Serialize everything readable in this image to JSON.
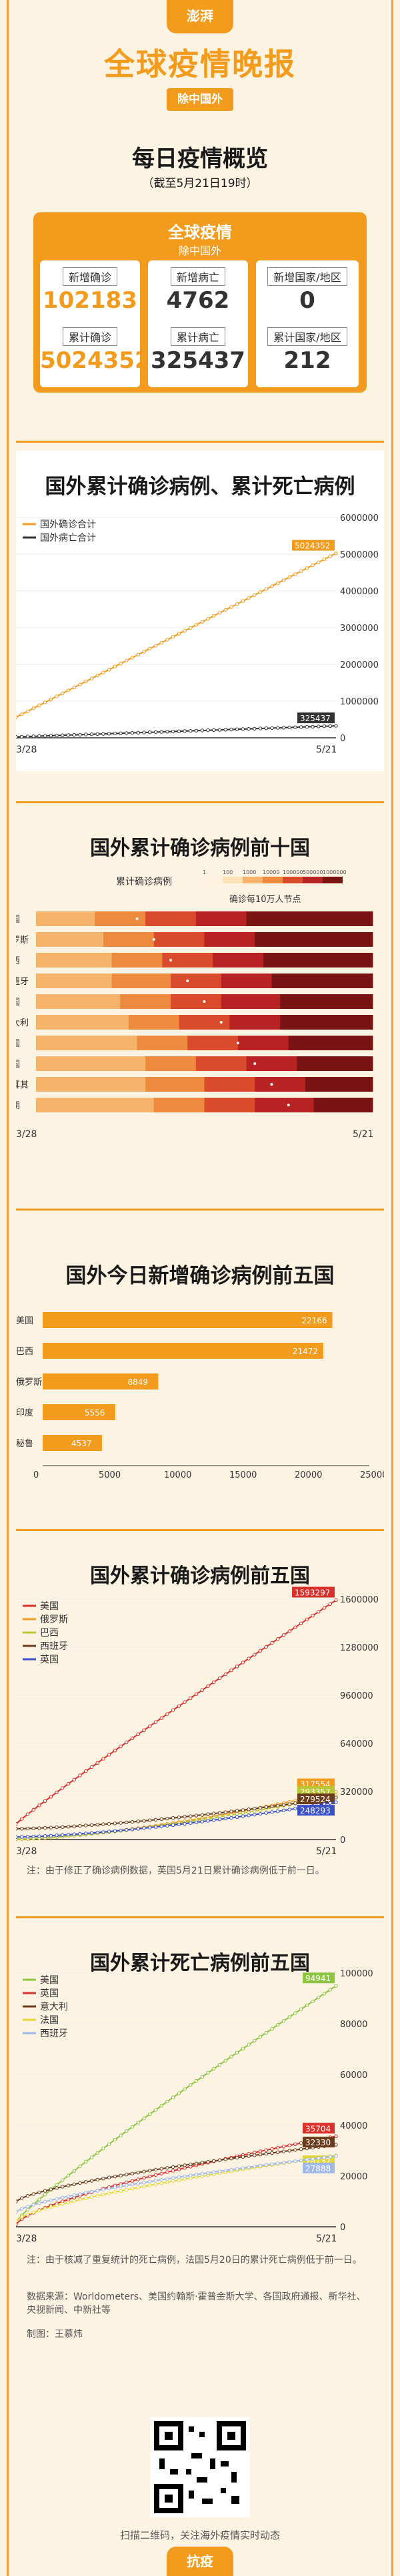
{
  "header": {
    "logo": "澎湃",
    "main_title": "全球疫情晚报",
    "sub_title": "除中国外"
  },
  "summary": {
    "title": "每日疫情概览",
    "date_note": "（截至5月21日19时）",
    "box_title": "全球疫情",
    "box_sub": "除中国外",
    "new_cases_label": "新增确诊",
    "new_cases": "102183",
    "total_cases_label": "累计确诊",
    "total_cases": "5024352",
    "new_deaths_label": "新增病亡",
    "new_deaths": "4762",
    "total_deaths_label": "累计病亡",
    "total_deaths": "325437",
    "new_countries_label": "新增国家/地区",
    "new_countries": "0",
    "total_countries_label": "累计国家/地区",
    "total_countries": "212"
  },
  "colors": {
    "accent": "#f39b1c",
    "dark": "#1a1a1a",
    "red": "#d8302a"
  },
  "chart_data": [
    {
      "type": "line",
      "title": "国外累计确诊病例、累计死亡病例",
      "x_start": "3/28",
      "x_end": "5/21",
      "ylim": [
        0,
        6000000
      ],
      "y_ticks": [
        "6000000",
        "5000000",
        "4000000",
        "3000000",
        "2000000",
        "1000000",
        "0"
      ],
      "series": [
        {
          "name": "国外确诊合计",
          "color": "#f39b1c",
          "start": 560000,
          "end": 5024352,
          "end_label": "5024352"
        },
        {
          "name": "国外病亡合计",
          "color": "#333333",
          "start": 26000,
          "end": 325437,
          "end_label": "325437"
        }
      ]
    },
    {
      "type": "heatmap",
      "title": "国外累计确诊病例前十国",
      "legend_title": "累计确诊病例",
      "legend_bins": [
        "1",
        "100",
        "1000",
        "10000",
        "100000",
        "500000",
        "1000000"
      ],
      "legend_note": "确诊每10万人节点",
      "x_start": "3/28",
      "x_end": "5/21",
      "rows": [
        "美国",
        "俄罗斯",
        "巴西",
        "西班牙",
        "英国",
        "意大利",
        "法国",
        "德国",
        "土耳其",
        "伊朗"
      ]
    },
    {
      "type": "bar",
      "title": "国外今日新增确诊病例前五国",
      "categories": [
        "美国",
        "巴西",
        "俄罗斯",
        "印度",
        "秘鲁"
      ],
      "values": [
        22166,
        21472,
        8849,
        5556,
        4537
      ],
      "value_labels": [
        "22166",
        "21472",
        "8849",
        "5556",
        "4537"
      ],
      "xlim": [
        0,
        25000
      ],
      "x_ticks": [
        "0",
        "5000",
        "10000",
        "15000",
        "20000",
        "25000"
      ]
    },
    {
      "type": "line",
      "title": "国外累计确诊病例前五国",
      "x_start": "3/28",
      "x_end": "5/21",
      "ylim": [
        0,
        1600000
      ],
      "y_ticks": [
        "1600000",
        "1280000",
        "960000",
        "640000",
        "320000",
        "0"
      ],
      "series": [
        {
          "name": "美国",
          "color": "#d8302a",
          "start": 104000,
          "end": 1593297,
          "end_label": "1593297"
        },
        {
          "name": "俄罗斯",
          "color": "#f39b1c",
          "start": 1260,
          "end": 317554,
          "end_label": "317554"
        },
        {
          "name": "巴西",
          "color": "#b8c832",
          "start": 3400,
          "end": 293357,
          "end_label": "293357"
        },
        {
          "name": "西班牙",
          "color": "#6b3c1c",
          "start": 72000,
          "end": 279524,
          "end_label": "279524"
        },
        {
          "name": "英国",
          "color": "#3a50c8",
          "start": 17000,
          "end": 248293,
          "end_label": "248293"
        }
      ],
      "note": "注：由于修正了确诊病例数据，英国5月21日累计确诊病例低于前一日。"
    },
    {
      "type": "line",
      "title": "国外累计死亡病例前五国",
      "x_start": "3/28",
      "x_end": "5/21",
      "ylim": [
        0,
        100000
      ],
      "y_ticks": [
        "100000",
        "80000",
        "60000",
        "40000",
        "20000",
        "0"
      ],
      "series": [
        {
          "name": "美国",
          "color": "#8cc63e",
          "start": 2000,
          "end": 94941,
          "end_label": "94941"
        },
        {
          "name": "英国",
          "color": "#d8302a",
          "start": 1000,
          "end": 35704,
          "end_label": "35704"
        },
        {
          "name": "意大利",
          "color": "#6b3c1c",
          "start": 10000,
          "end": 32330,
          "end_label": "32330"
        },
        {
          "name": "法国",
          "color": "#e6d63a",
          "start": 2300,
          "end": 28132,
          "end_label": "28132"
        },
        {
          "name": "西班牙",
          "color": "#9fb8e8",
          "start": 5800,
          "end": 27888,
          "end_label": "27888"
        }
      ],
      "note": "注：由于核减了重复统计的死亡病例，法国5月20日的累计死亡病例低于前一日。"
    }
  ],
  "footer": {
    "source": "数据来源：Worldometers、美国约翰斯·霍普金斯大学、各国政府通报、新华社、央视新闻、中新社等",
    "editor": "制图：王慕炜",
    "qr_caption": "扫描二维码，关注海外疫情实时动态",
    "footer_tag": "抗疫"
  }
}
